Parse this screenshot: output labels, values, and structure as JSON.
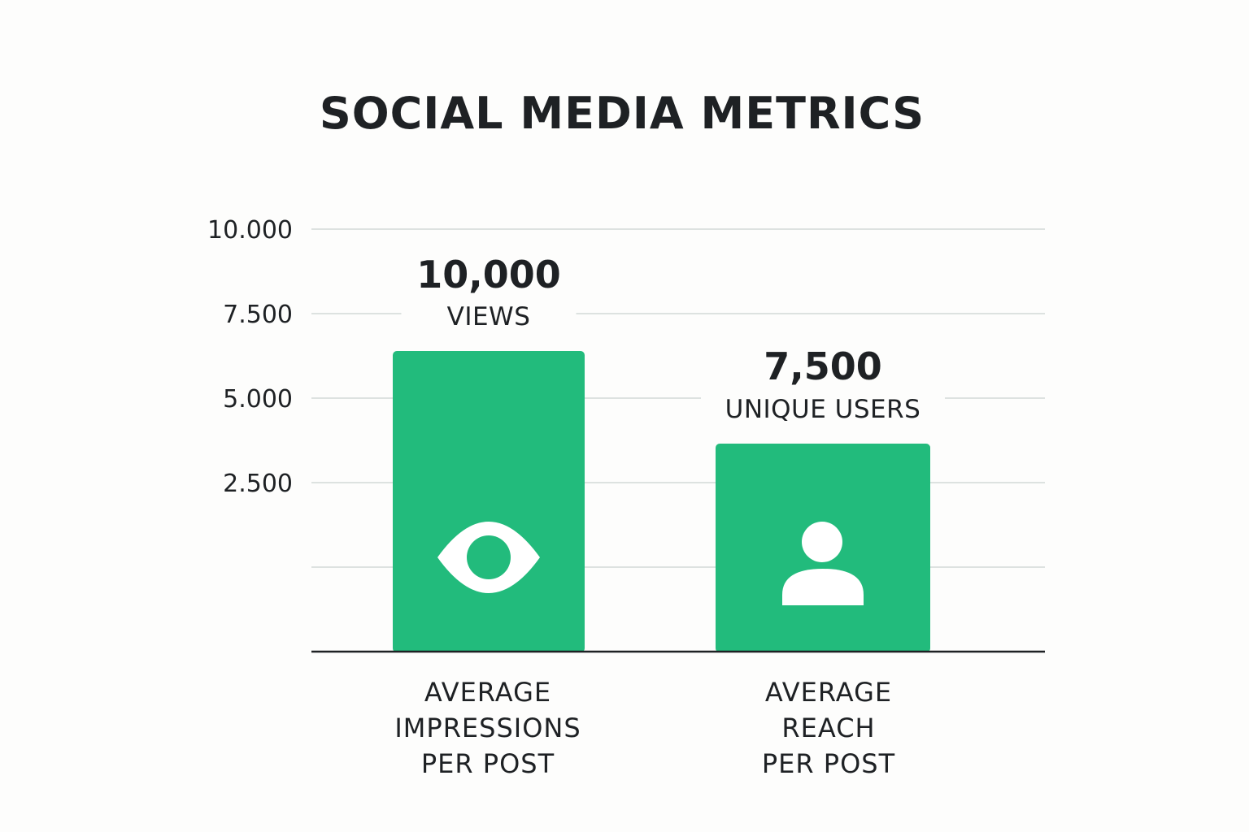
{
  "chart_data": {
    "type": "bar",
    "title": "SOCIAL MEDIA METRICS",
    "xlabel": "",
    "ylabel": "",
    "ylim": [
      0,
      12500
    ],
    "y_ticks": [
      {
        "value": 2500,
        "label": "2.500"
      },
      {
        "value": 5000,
        "label": "5.000"
      },
      {
        "value": 7500,
        "label": "7.500"
      },
      {
        "value": 10000,
        "label": "10.000"
      }
    ],
    "grid": true,
    "bar_color": "#22bb7c",
    "categories": [
      {
        "lines": [
          "AVERAGE",
          "IMPRESSIONS",
          "PER POST"
        ],
        "icon": "eye-icon"
      },
      {
        "lines": [
          "AVERAGE",
          "REACH",
          "PER POST"
        ],
        "icon": "user-icon"
      }
    ],
    "values": [
      10000,
      7500
    ],
    "data_labels": [
      {
        "value_text": "10,000",
        "unit_text": "VIEWS"
      },
      {
        "value_text": "7,500",
        "unit_text": "UNIQUE USERS"
      }
    ]
  }
}
